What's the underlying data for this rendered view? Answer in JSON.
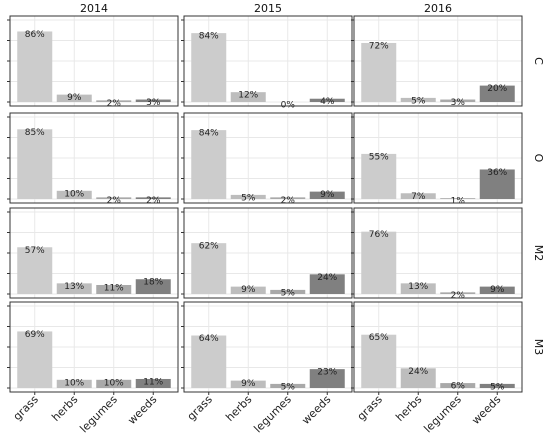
{
  "chart_data": {
    "type": "bar",
    "facet_layout": "grid",
    "columns": [
      "2014",
      "2015",
      "2016"
    ],
    "rows": [
      "C",
      "O",
      "M2",
      "M3"
    ],
    "categories": [
      "grass",
      "herbs",
      "legumes",
      "weeds"
    ],
    "ylim": [
      0,
      100
    ],
    "grid": true,
    "colors": {
      "grass": "#cccccc",
      "herbs": "#bdbdbd",
      "legumes": "#a9a9a9",
      "weeds": "#808080",
      "panel_border": "#333333",
      "gridline": "#e8e8e8"
    },
    "panels": [
      {
        "row": "C",
        "col": "2014",
        "values": [
          86,
          9,
          2,
          3
        ],
        "labels": [
          "86%",
          "9%",
          "2%",
          "3%"
        ]
      },
      {
        "row": "C",
        "col": "2015",
        "values": [
          84,
          12,
          0,
          4
        ],
        "labels": [
          "84%",
          "12%",
          "0%",
          "4%"
        ]
      },
      {
        "row": "C",
        "col": "2016",
        "values": [
          72,
          5,
          3,
          20
        ],
        "labels": [
          "72%",
          "5%",
          "3%",
          "20%"
        ]
      },
      {
        "row": "O",
        "col": "2014",
        "values": [
          85,
          10,
          2,
          2
        ],
        "labels": [
          "85%",
          "10%",
          "2%",
          "2%"
        ]
      },
      {
        "row": "O",
        "col": "2015",
        "values": [
          84,
          5,
          2,
          9
        ],
        "labels": [
          "84%",
          "5%",
          "2%",
          "9%"
        ]
      },
      {
        "row": "O",
        "col": "2016",
        "values": [
          55,
          7,
          1,
          36
        ],
        "labels": [
          "55%",
          "7%",
          "1%",
          "36%"
        ]
      },
      {
        "row": "M2",
        "col": "2014",
        "values": [
          57,
          13,
          11,
          18
        ],
        "labels": [
          "57%",
          "13%",
          "11%",
          "18%"
        ]
      },
      {
        "row": "M2",
        "col": "2015",
        "values": [
          62,
          9,
          5,
          24
        ],
        "labels": [
          "62%",
          "9%",
          "5%",
          "24%"
        ]
      },
      {
        "row": "M2",
        "col": "2016",
        "values": [
          76,
          13,
          2,
          9
        ],
        "labels": [
          "76%",
          "13%",
          "2%",
          "9%"
        ]
      },
      {
        "row": "M3",
        "col": "2014",
        "values": [
          69,
          10,
          10,
          11
        ],
        "labels": [
          "69%",
          "10%",
          "10%",
          "11%"
        ]
      },
      {
        "row": "M3",
        "col": "2015",
        "values": [
          64,
          9,
          5,
          23
        ],
        "labels": [
          "64%",
          "9%",
          "5%",
          "23%"
        ]
      },
      {
        "row": "M3",
        "col": "2016",
        "values": [
          65,
          24,
          6,
          5
        ],
        "labels": [
          "65%",
          "24%",
          "6%",
          "5%"
        ]
      }
    ]
  }
}
